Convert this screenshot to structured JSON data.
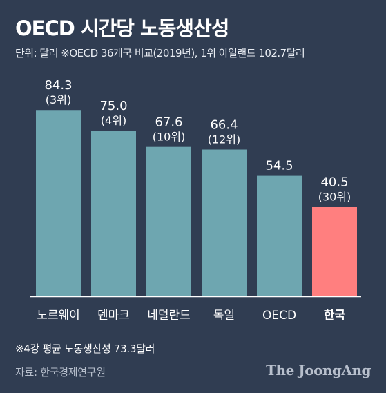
{
  "header": {
    "title": "OECD 시간당 노동생산성",
    "subtitle": "단위: 달러  ※OECD 36개국 비교(2019년), 1위 아일랜드 102.7달러"
  },
  "chart_data": {
    "type": "bar",
    "categories": [
      "노르웨이",
      "덴마크",
      "네덜란드",
      "독일",
      "OECD",
      "한국"
    ],
    "values": [
      84.3,
      75.0,
      67.6,
      66.4,
      54.5,
      40.5
    ],
    "value_labels": [
      "84.3",
      "75.0",
      "67.6",
      "66.4",
      "54.5",
      "40.5"
    ],
    "rank_labels": [
      "(3위)",
      "(4위)",
      "(10위)",
      "(12위)",
      "",
      "(30위)"
    ],
    "ylim": [
      0,
      100
    ],
    "grid": false,
    "bar_color": "#6ea6b0",
    "highlight_color": "#ff7f7f",
    "highlight_index": 5,
    "baseline_color": "#ffffff"
  },
  "footer": {
    "note": "※4강 평균 노동생산성 73.3달러",
    "source": "자료: 한국경제연구원",
    "logo": "The JoongAng"
  }
}
